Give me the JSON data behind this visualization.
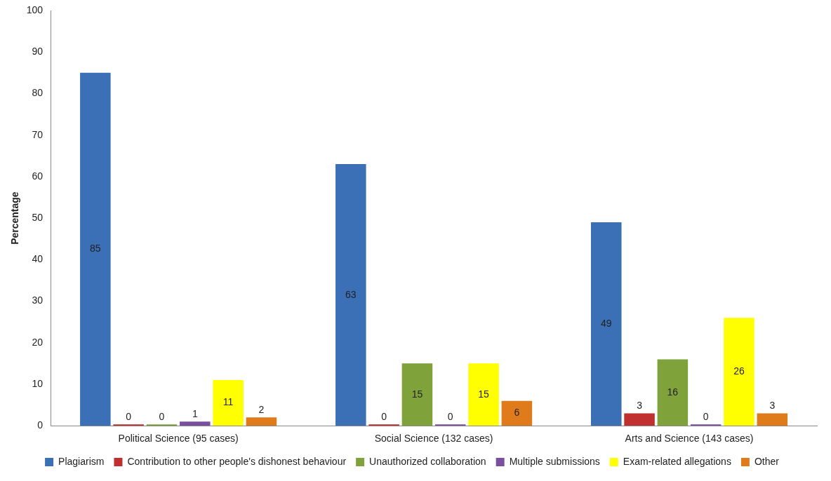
{
  "chart_data": {
    "type": "bar",
    "ylabel": "Percentage",
    "categories": [
      "Political Science (95 cases)",
      "Social Science (132 cases)",
      "Arts and Science (143 cases)"
    ],
    "series": [
      {
        "name": "Plagiarism",
        "color": "#3b6fb6",
        "values": [
          85,
          63,
          49
        ]
      },
      {
        "name": "Contribution to other people's dishonest behaviour",
        "color": "#c0302f",
        "values": [
          0,
          0,
          3
        ]
      },
      {
        "name": "Unauthorized collaboration",
        "color": "#7fa33a",
        "values": [
          0,
          15,
          16
        ]
      },
      {
        "name": "Multiple submissions",
        "color": "#7a4fa0",
        "values": [
          1,
          0,
          0
        ]
      },
      {
        "name": "Exam-related allegations",
        "color": "#ffff00",
        "values": [
          11,
          15,
          26
        ]
      },
      {
        "name": "Other",
        "color": "#e07b1c",
        "values": [
          2,
          6,
          3
        ]
      }
    ],
    "ylim": [
      0,
      100
    ],
    "yticks": [
      0,
      10,
      20,
      30,
      40,
      50,
      60,
      70,
      80,
      90,
      100
    ],
    "grid": false,
    "legend": "bottom",
    "data_labels": true
  }
}
